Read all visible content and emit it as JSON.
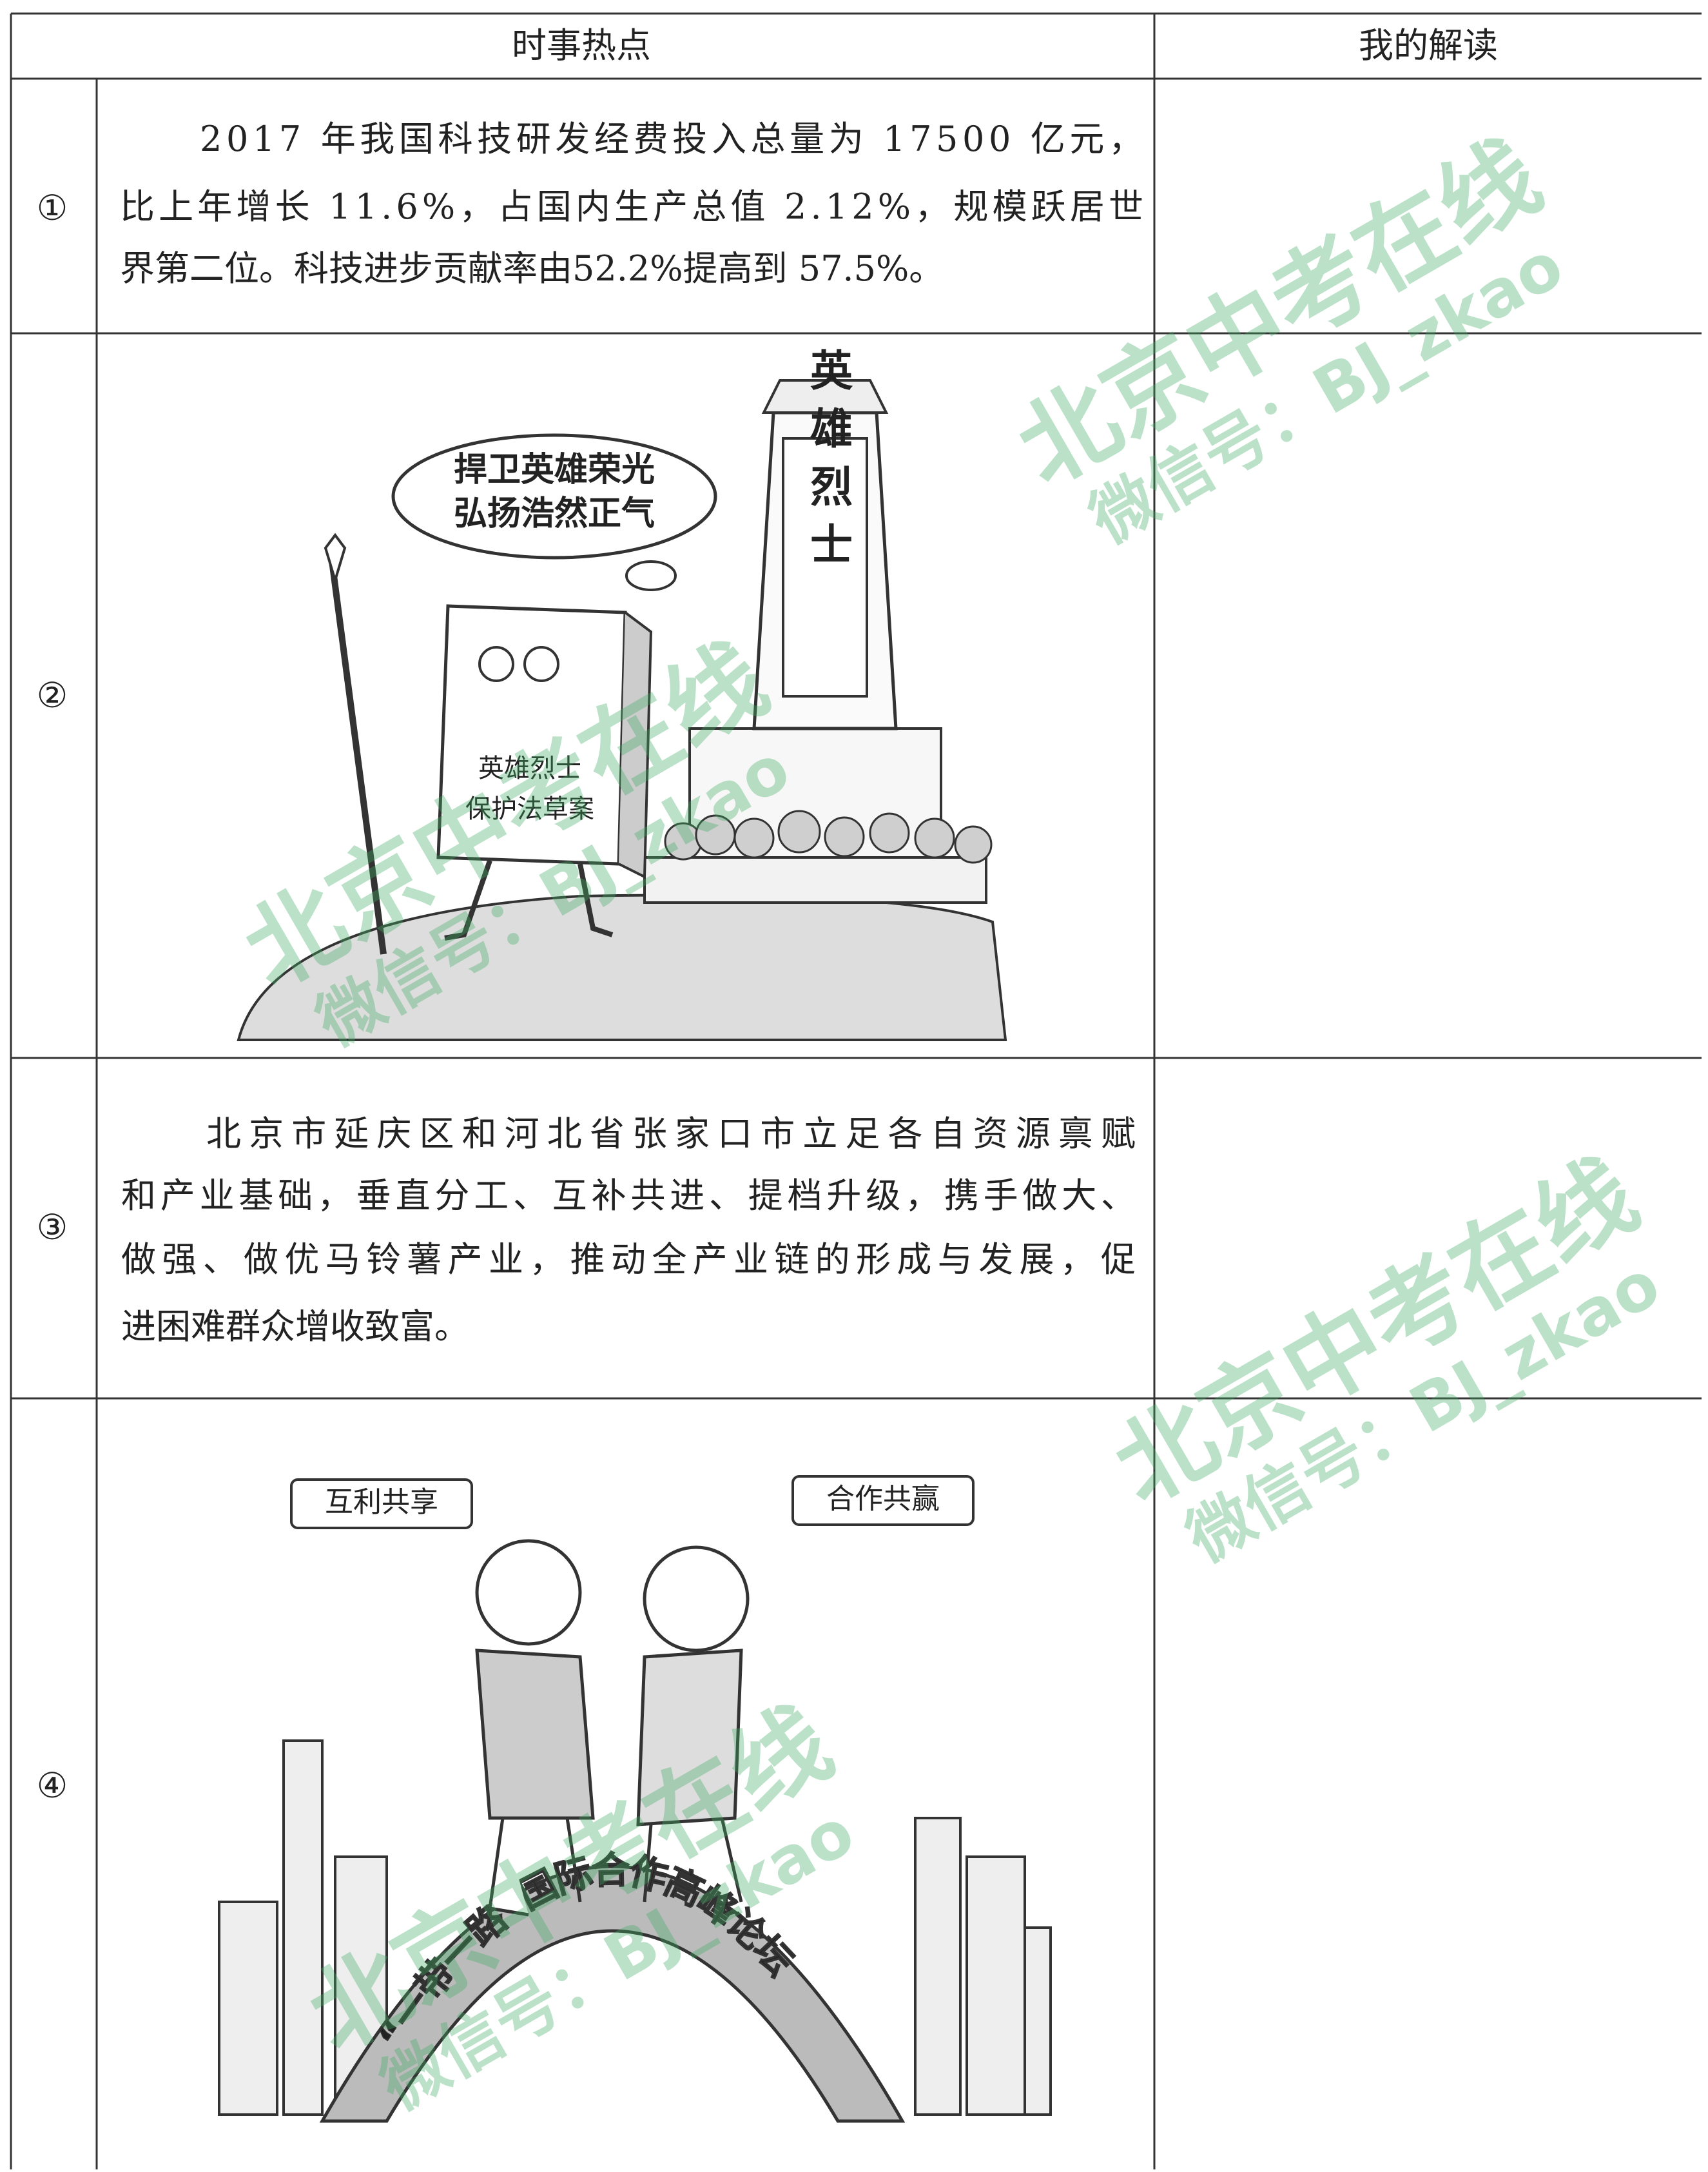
{
  "table": {
    "header": [
      "时事热点",
      "我的解读"
    ],
    "rows": [
      {
        "marker": "①",
        "lines": [
          "2017 年我国科技研发经费投入总量为 17500 亿元，",
          "比上年增长 11.6%，占国内生产总值 2.12%，规模跃居世",
          "界第二位。科技进步贡献率由52.2%提高到 57.5%。"
        ]
      },
      {
        "marker": "②",
        "image": {
          "bubble": [
            "捍卫英雄荣光",
            "弘扬浩然正气"
          ],
          "monument": "英雄烈士",
          "book": [
            "英雄烈士",
            "保护法草案"
          ]
        }
      },
      {
        "marker": "③",
        "lines": [
          "北京市延庆区和河北省张家口市立足各自资源禀赋",
          "和产业基础，垂直分工、互补共进、提档升级，携手做大、",
          "做强、做优马铃薯产业，推动全产业链的形成与发展，促",
          "进困难群众增收致富。"
        ]
      },
      {
        "marker": "④",
        "image": {
          "left_bubble": "互利共享",
          "right_bubble": "合作共赢",
          "arch": "“一带一路”国际合作高峰论坛"
        }
      }
    ]
  },
  "watermark": {
    "line1": "北京中考在线",
    "line2": "微信号：BJ_zkao"
  }
}
